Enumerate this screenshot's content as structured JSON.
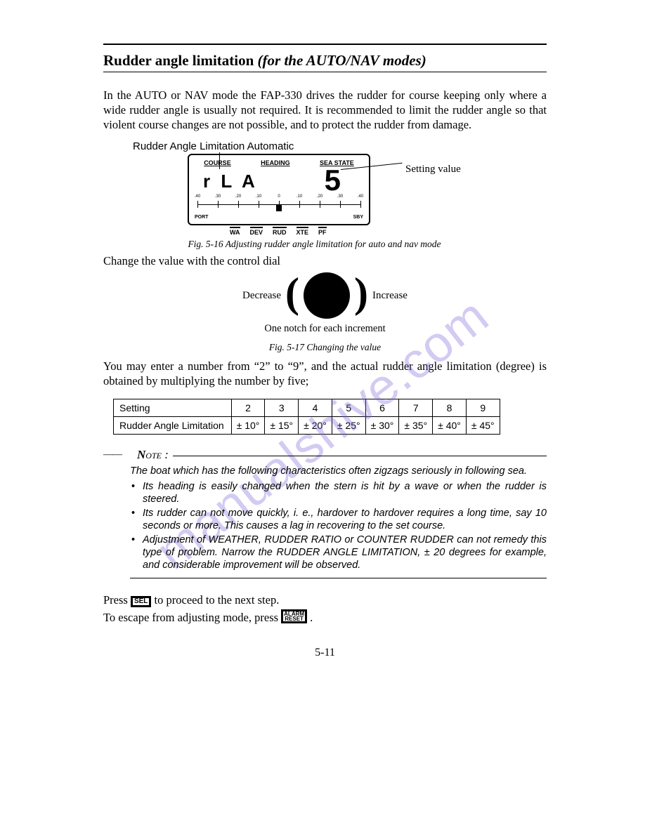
{
  "title": {
    "main": "Rudder angle limitation ",
    "ital": "(for the AUTO/NAV modes)"
  },
  "p1": "In the AUTO or NAV mode the FAP-330 drives the rudder for course keeping only where a wide rudder angle is usually not required.  It is recommended to limit the rudder angle so that violent course changes are not possible, and to protect the rudder from damage.",
  "fig516": {
    "label": "Rudder Angle Limitation Automatic",
    "top_labels": [
      "COURSE",
      "HEADING",
      "SEA STATE"
    ],
    "rla": "r L A",
    "digit": "5",
    "scale_nums": [
      ".40",
      ".30",
      ".20",
      ".10",
      "0",
      ".10",
      ".20",
      ".30",
      ".40"
    ],
    "port": "PORT",
    "sby": "SBY",
    "bot_labels": [
      "WA",
      "DEV",
      "RUD",
      "XTE",
      "PF"
    ],
    "setting_value_label": "Setting value",
    "caption": "Fig. 5-16  Adjusting rudder angle limitation for auto and nav mode"
  },
  "p2": "Change the value with the control dial",
  "dial": {
    "decrease": "Decrease",
    "increase": "Increase",
    "one_notch": "One notch for each increment",
    "caption": "Fig. 5-17  Changing the value"
  },
  "p3": "You may enter a number from “2” to “9”, and the actual rudder angle limitation (degree) is obtained by multiplying the number by five;",
  "table": {
    "row1_label": "Setting",
    "row1": [
      "2",
      "3",
      "4",
      "5",
      "6",
      "7",
      "8",
      "9"
    ],
    "row2_label": "Rudder Angle Limitation",
    "row2": [
      "± 10°",
      "± 15°",
      "± 20°",
      "± 25°",
      "± 30°",
      "± 35°",
      "± 40°",
      "± 45°"
    ]
  },
  "note": {
    "head": "Note :",
    "lead": "The boat which has the following characteristics often zigzags seriously in following sea.",
    "items": [
      "Its heading is easily changed when the stern is hit by a wave or when the rudder is steered.",
      "Its rudder can not move quickly, i. e., hardover to hardover requires a long time, say 10 seconds or more.  This causes a lag in recovering to the set course.",
      "Adjustment of WEATHER, RUDDER RATIO or COUNTER RUDDER can not remedy this type of problem.   Narrow the RUDDER ANGLE LIMITATION, ± 20 degrees for example, and considerable improvement will be observed."
    ]
  },
  "press": {
    "l1a": "Press ",
    "sel": "SEL",
    "l1b": " to proceed to the next step.",
    "l2a": "To escape from adjusting mode, press ",
    "alarm": "ALARM\nRESET",
    "l2b": " ."
  },
  "pagenum": "5-11",
  "watermark": "manualshive.com"
}
